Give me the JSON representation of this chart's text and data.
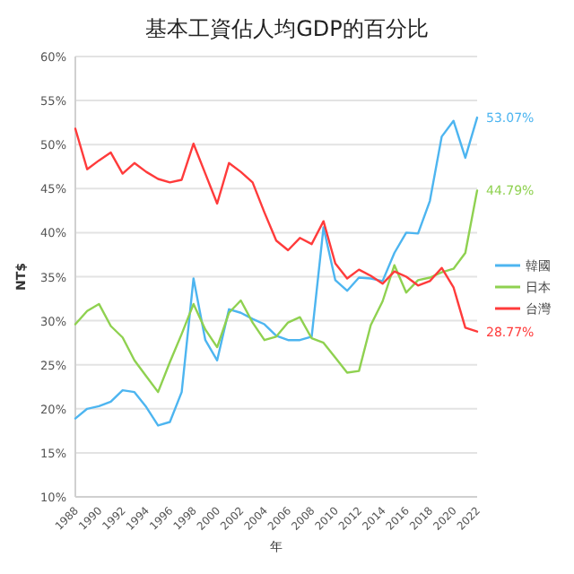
{
  "chart_data": {
    "type": "line",
    "title": "基本工資佔人均GDP的百分比",
    "xlabel": "年",
    "ylabel": "NT$",
    "x": [
      1988,
      1989,
      1990,
      1991,
      1992,
      1993,
      1994,
      1995,
      1996,
      1997,
      1998,
      1999,
      2000,
      2001,
      2002,
      2003,
      2004,
      2005,
      2006,
      2007,
      2008,
      2009,
      2010,
      2011,
      2012,
      2013,
      2014,
      2015,
      2016,
      2017,
      2018,
      2019,
      2020,
      2021,
      2022
    ],
    "xlim": [
      1988,
      2022
    ],
    "xticks": [
      1988,
      1990,
      1992,
      1994,
      1996,
      1998,
      2000,
      2002,
      2004,
      2006,
      2008,
      2010,
      2012,
      2014,
      2016,
      2018,
      2020,
      2022
    ],
    "ylim": [
      10,
      60
    ],
    "yticks": [
      {
        "value": 10,
        "label": "10%"
      },
      {
        "value": 15,
        "label": "15%"
      },
      {
        "value": 20,
        "label": "20%"
      },
      {
        "value": 25,
        "label": "25%"
      },
      {
        "value": 30,
        "label": "30%"
      },
      {
        "value": 35,
        "label": "35%"
      },
      {
        "value": 40,
        "label": "40%"
      },
      {
        "value": 45,
        "label": "45%"
      },
      {
        "value": 50,
        "label": "50%"
      },
      {
        "value": 55,
        "label": "55%"
      },
      {
        "value": 60,
        "label": "60%"
      }
    ],
    "grid": "y",
    "legend": "right",
    "series": [
      {
        "name": "韓國",
        "color": "#4db5f0",
        "values": [
          18.9,
          20.0,
          20.3,
          20.8,
          22.1,
          21.9,
          20.2,
          18.1,
          18.5,
          21.9,
          34.8,
          27.8,
          25.5,
          31.3,
          30.9,
          30.2,
          29.6,
          28.3,
          27.8,
          27.8,
          28.2,
          40.6,
          34.6,
          33.4,
          34.9,
          34.8,
          34.5,
          37.7,
          40.0,
          39.9,
          43.6,
          50.9,
          52.7,
          48.5,
          53.07
        ],
        "value_labels": [
          null,
          null,
          null,
          null,
          null,
          null,
          null,
          null,
          null,
          null,
          null,
          null,
          null,
          null,
          null,
          null,
          null,
          null,
          null,
          null,
          null,
          null,
          null,
          null,
          null,
          null,
          null,
          null,
          null,
          null,
          null,
          null,
          null,
          null,
          "53.07%"
        ]
      },
      {
        "name": "日本",
        "color": "#8fd150",
        "values": [
          29.6,
          31.1,
          31.9,
          29.4,
          28.1,
          25.5,
          23.7,
          21.9,
          25.3,
          28.5,
          31.9,
          29.0,
          27.0,
          30.9,
          32.3,
          29.8,
          27.8,
          28.2,
          29.8,
          30.4,
          28.0,
          27.5,
          25.8,
          24.1,
          24.3,
          29.5,
          32.2,
          36.3,
          33.2,
          34.6,
          34.9,
          35.5,
          35.9,
          37.7,
          44.79
        ],
        "value_labels": [
          null,
          null,
          null,
          null,
          null,
          null,
          null,
          null,
          null,
          null,
          null,
          null,
          null,
          null,
          null,
          null,
          null,
          null,
          null,
          null,
          null,
          null,
          null,
          null,
          null,
          null,
          null,
          null,
          null,
          null,
          null,
          null,
          null,
          null,
          "44.79%"
        ]
      },
      {
        "name": "台灣",
        "color": "#ff3b3b",
        "values": [
          51.8,
          47.2,
          48.2,
          49.1,
          46.7,
          47.9,
          46.9,
          46.1,
          45.7,
          46.0,
          50.1,
          46.7,
          43.3,
          47.9,
          46.9,
          45.7,
          42.3,
          39.1,
          38.0,
          39.4,
          38.7,
          41.3,
          36.5,
          34.8,
          35.8,
          35.1,
          34.2,
          35.6,
          35.0,
          34.0,
          34.5,
          36.0,
          33.8,
          29.2,
          28.77
        ],
        "value_labels": [
          null,
          null,
          null,
          null,
          null,
          null,
          null,
          null,
          null,
          null,
          null,
          null,
          null,
          null,
          null,
          null,
          null,
          null,
          null,
          null,
          null,
          null,
          null,
          null,
          null,
          null,
          null,
          null,
          null,
          null,
          null,
          null,
          null,
          null,
          "28.77%"
        ]
      }
    ]
  }
}
